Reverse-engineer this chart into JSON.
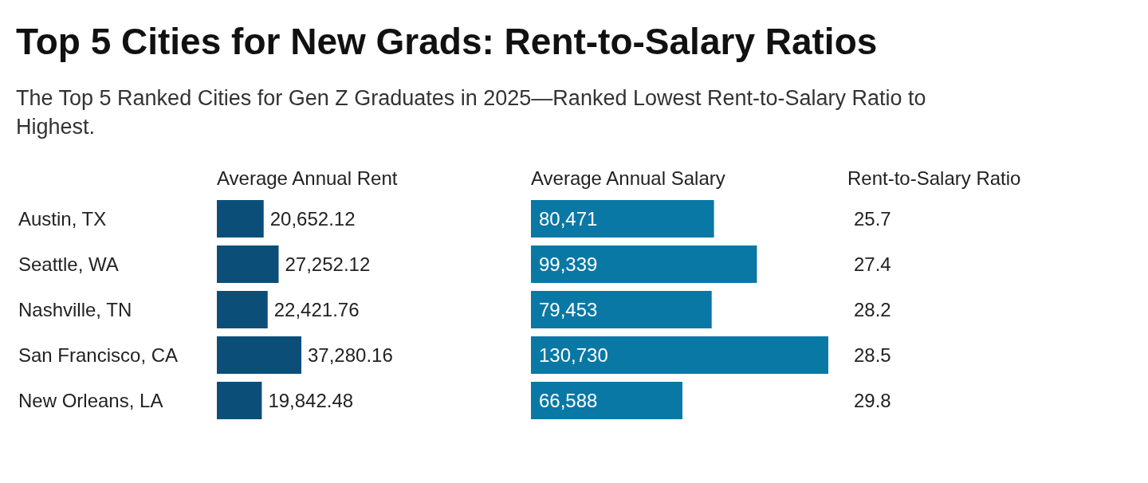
{
  "chart_data": [
    {
      "type": "other",
      "title": "Top 5 Cities for New Grads: Rent-to-Salary Ratios",
      "subtitle": "The Top 5 Ranked Cities for Gen Z Graduates in 2025—Ranked Lowest Rent-to-Salary Ratio to Highest."
    },
    {
      "type": "bar",
      "orientation": "horizontal",
      "title": "Average Annual Rent",
      "categories": [
        "Austin, TX",
        "Seattle, WA",
        "Nashville, TN",
        "San Francisco, CA",
        "New Orleans, LA"
      ],
      "values": [
        20652.12,
        27252.12,
        22421.76,
        37280.16,
        19842.48
      ],
      "value_labels": [
        "20,652.12",
        "27,252.12",
        "22,421.76",
        "37,280.16",
        "19,842.48"
      ],
      "color": "#0b4f79",
      "tick_labels": "x"
    },
    {
      "type": "bar",
      "orientation": "horizontal",
      "title": "Average Annual Salary",
      "categories": [
        null,
        null,
        null,
        null,
        null
      ],
      "values": [
        80471,
        99339,
        79453,
        130730,
        66588
      ],
      "value_labels": [
        "80,471",
        "99,339",
        "79,453",
        "130,730",
        "66,588"
      ],
      "color": "#0a78a5",
      "tick_labels": false
    },
    {
      "type": "other",
      "title": "Rent-to-Salary Ratio",
      "categories": [
        null,
        null,
        null,
        null,
        null
      ],
      "values": [
        25.7,
        27.4,
        28.2,
        28.5,
        29.8
      ],
      "data_labels": true
    }
  ]
}
